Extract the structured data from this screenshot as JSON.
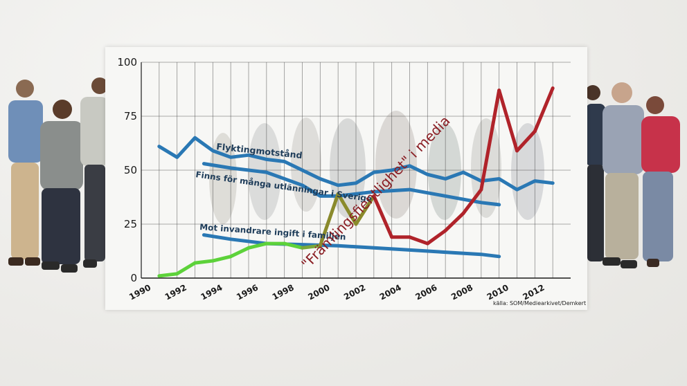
{
  "chart_data": {
    "type": "line",
    "xlim": [
      1990,
      2014
    ],
    "ylim": [
      0,
      100
    ],
    "y_ticks": [
      "0",
      "25",
      "50",
      "75",
      "100"
    ],
    "x_ticks": [
      "1990",
      "1992",
      "1994",
      "1996",
      "1998",
      "2000",
      "2002",
      "2004",
      "2006",
      "2008",
      "2010",
      "2012"
    ],
    "grid": true,
    "source": "källa: SOM/Mediearkivet/Demkert",
    "series": [
      {
        "name": "Flyktingmotstånd",
        "color": "#2a78b4",
        "points": [
          [
            1991,
            61
          ],
          [
            1992,
            56
          ],
          [
            1993,
            65
          ],
          [
            1994,
            59
          ],
          [
            1995,
            56
          ],
          [
            1996,
            57
          ],
          [
            1997,
            55
          ],
          [
            1998,
            54
          ],
          [
            1999,
            50
          ],
          [
            2000,
            46
          ],
          [
            2001,
            43
          ],
          [
            2002,
            44
          ],
          [
            2003,
            49
          ],
          [
            2004,
            50
          ],
          [
            2005,
            52
          ],
          [
            2006,
            48
          ],
          [
            2007,
            46
          ],
          [
            2008,
            49
          ],
          [
            2009,
            45
          ],
          [
            2010,
            46
          ],
          [
            2011,
            41
          ],
          [
            2012,
            45
          ],
          [
            2013,
            44
          ]
        ]
      },
      {
        "name": "Finns för många utlänningar i Sverige",
        "color": "#2a78b4",
        "points": [
          [
            1993.5,
            53
          ],
          [
            1995,
            51
          ],
          [
            1997,
            49
          ],
          [
            1999,
            43
          ],
          [
            2000,
            38
          ],
          [
            2001,
            38
          ],
          [
            2003,
            40
          ],
          [
            2005,
            41
          ],
          [
            2007,
            38
          ],
          [
            2009,
            35
          ],
          [
            2010,
            34
          ]
        ]
      },
      {
        "name": "Mot invandrare ingift i familjen",
        "color": "#2a78b4",
        "points": [
          [
            1993.5,
            20
          ],
          [
            1995,
            18
          ],
          [
            1997,
            16
          ],
          [
            1999,
            15.5
          ],
          [
            2001,
            15
          ],
          [
            2003,
            14
          ],
          [
            2005,
            13
          ],
          [
            2007,
            12
          ],
          [
            2009,
            11
          ],
          [
            2010,
            10
          ]
        ]
      },
      {
        "name": "\"Främlingsfientlighet\" i media",
        "color": "#b0232a",
        "points": [
          [
            1991,
            1
          ],
          [
            1992,
            2
          ],
          [
            1993,
            7
          ],
          [
            1994,
            8
          ],
          [
            1995,
            10
          ],
          [
            1996,
            14
          ],
          [
            1997,
            16
          ],
          [
            1998,
            16
          ],
          [
            1999,
            14
          ],
          [
            2000,
            15
          ],
          [
            2001,
            39
          ],
          [
            2002,
            25
          ],
          [
            2003,
            38
          ],
          [
            2004,
            19
          ],
          [
            2005,
            19
          ],
          [
            2006,
            16
          ],
          [
            2007,
            22
          ],
          [
            2008,
            30
          ],
          [
            2009,
            41
          ],
          [
            2010,
            87
          ],
          [
            2011,
            59
          ],
          [
            2012,
            68
          ],
          [
            2013,
            88
          ]
        ]
      }
    ]
  }
}
